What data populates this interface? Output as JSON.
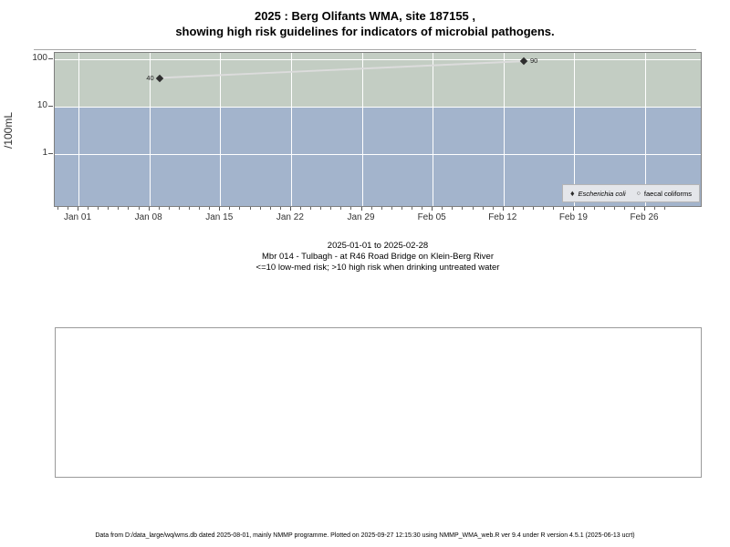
{
  "title": {
    "line1": "2025 : Berg Olifants WMA, site 187155 ,",
    "line2": "showing high risk guidelines for indicators of microbial pathogens."
  },
  "y_axis": {
    "label": "/100mL"
  },
  "captions": {
    "range": "2025-01-01 to 2025-02-28",
    "site": "Mbr 014 - Tulbagh - at R46 Road Bridge on Klein-Berg River",
    "guideline": "<=10 low-med risk; >10 high risk when drinking untreated water"
  },
  "footer": "Data from D:/data_large/wq/wms.db dated 2025-08-01, mainly NMMP programme. Plotted on 2025-09-27 12:15:30 using NMMP_WMA_web.R ver 9.4 under R version 4.5.1 (2025-06-13 ucrt)",
  "icons": {
    "filled_diamond": "♦",
    "open_circle": "○"
  },
  "chart_data": {
    "type": "scatter",
    "title": "2025 : Berg Olifants WMA, site 187155 , showing high risk guidelines for indicators of microbial pathogens.",
    "ylabel": "/100mL",
    "y_scale": "log10",
    "ylim_approx": [
      0.07,
      130
    ],
    "y_ticks": [
      {
        "value": 100,
        "label": "100"
      },
      {
        "value": 10,
        "label": "10"
      },
      {
        "value": 1,
        "label": "1"
      }
    ],
    "x_ticks": [
      {
        "label": "Jan 01",
        "date": "2025-01-01"
      },
      {
        "label": "Jan 08",
        "date": "2025-01-08"
      },
      {
        "label": "Jan 15",
        "date": "2025-01-15"
      },
      {
        "label": "Jan 22",
        "date": "2025-01-22"
      },
      {
        "label": "Jan 29",
        "date": "2025-01-29"
      },
      {
        "label": "Feb 05",
        "date": "2025-02-05"
      },
      {
        "label": "Feb 12",
        "date": "2025-02-12"
      },
      {
        "label": "Feb 19",
        "date": "2025-02-19"
      },
      {
        "label": "Feb 26",
        "date": "2025-02-26"
      }
    ],
    "x_minor_tick_interval_days": 1,
    "date_range": "2025-01-01 to 2025-02-28",
    "risk_boundary": 10,
    "risk_bands": [
      {
        "name": "high-risk",
        "rule": ">10",
        "color": "#c3cdc3"
      },
      {
        "name": "low-med-risk",
        "rule": "<=10",
        "color": "#a3b4cc"
      }
    ],
    "series": [
      {
        "name": "Escherichia coli",
        "marker": "filled-diamond",
        "color": "#2e2e2e",
        "points": [
          {
            "date": "2025-01-09",
            "value": 40,
            "label": "40",
            "label_side": "left"
          },
          {
            "date": "2025-02-14",
            "value": 90,
            "label": "90",
            "label_side": "right"
          }
        ]
      },
      {
        "name": "faecal coliforms",
        "marker": "open-circle",
        "color": "#2e2e2e",
        "points": []
      }
    ],
    "trend_line": {
      "color": "#dcdcdc",
      "points": [
        {
          "date": "2025-01-09",
          "value": 40
        },
        {
          "date": "2025-02-14",
          "value": 90
        }
      ]
    },
    "legend_position": "bottom-right-inside",
    "grid": true
  }
}
